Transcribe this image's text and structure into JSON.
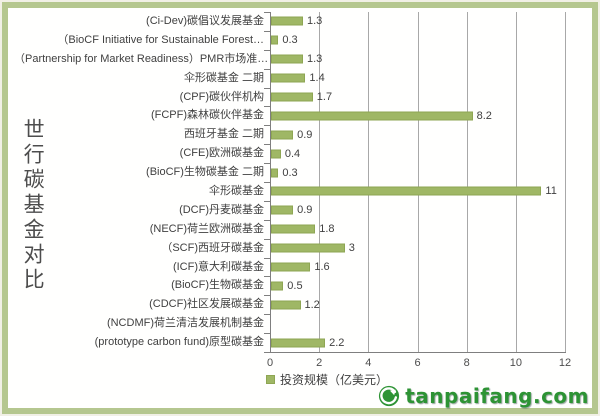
{
  "chart_data": {
    "type": "bar",
    "orientation": "horizontal",
    "title": "世行碳基金对比",
    "legend": "投资规模（亿美元）",
    "legend_position": "bottom",
    "grid": true,
    "xlim": [
      0,
      12
    ],
    "x_ticks": [
      "0",
      "2",
      "4",
      "6",
      "8",
      "10",
      "12"
    ],
    "categories": [
      "(Ci-Dev)碳倡议发展基金",
      "（BioCF Initiative for Sustainable Forest…",
      "（Partnership for Market Readiness）PMR市场准…",
      "伞形碳基金 二期",
      "(CPF)碳伙伴机构",
      "(FCPF)森林碳伙伴基金",
      "西班牙基金 二期",
      "(CFE)欧洲碳基金",
      "(BioCF)生物碳基金 二期",
      "伞形碳基金",
      "(DCF)丹麦碳基金",
      "(NECF)荷兰欧洲碳基金",
      "（SCF)西班牙碳基金",
      "(ICF)意大利碳基金",
      "(BioCF)生物碳基金",
      "(CDCF)社区发展碳基金",
      "(NCDMF)荷兰清洁发展机制基金",
      "(prototype carbon fund)原型碳基金"
    ],
    "values": [
      1.3,
      0.3,
      1.3,
      1.4,
      1.7,
      8.2,
      0.9,
      0.4,
      0.3,
      11,
      0.9,
      1.8,
      3,
      1.6,
      0.5,
      1.2,
      0,
      2.2
    ],
    "value_labels": [
      "1.3",
      "0.3",
      "1.3",
      "1.4",
      "1.7",
      "8.2",
      "0.9",
      "0.4",
      "0.3",
      "11",
      "0.9",
      "1.8",
      "3",
      "1.6",
      "0.5",
      "1.2",
      "",
      "2.2"
    ]
  },
  "colors": {
    "bar": "#9fb765",
    "bar_border": "#8ea653",
    "frame": "#b5c78f",
    "grid": "#a8a8a8",
    "axis": "#7f7f7f",
    "text": "#404040",
    "watermark_green": "#2d9334"
  },
  "watermark": {
    "text": "tanpaifang.com",
    "icon": "tanpaifang-logo-icon"
  }
}
